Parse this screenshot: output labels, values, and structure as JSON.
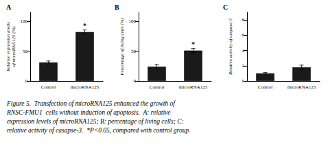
{
  "chart_data": [
    {
      "type": "bar",
      "title": "A",
      "ylabel": "Relative expression levels\nof microRNA125 (%)",
      "categories": [
        "Control",
        "microRNA125"
      ],
      "values": [
        31,
        82
      ],
      "errors": [
        2.5,
        3.5
      ],
      "ylim": [
        0,
        115
      ],
      "yticks": [
        0,
        50,
        100
      ],
      "color": "#1a1a1a",
      "grid": false,
      "annotations": [
        {
          "text": "*",
          "x": "microRNA125"
        }
      ]
    },
    {
      "type": "bar",
      "title": "B",
      "ylabel": "Percentage of living cells (%)",
      "categories": [
        "Control",
        "microRNA125"
      ],
      "values": [
        24,
        51
      ],
      "errors": [
        4.0,
        3.5
      ],
      "ylim": [
        0,
        115
      ],
      "yticks": [
        0,
        50,
        100
      ],
      "color": "#1a1a1a",
      "grid": false,
      "annotations": [
        {
          "text": "*",
          "x": "microRNA125"
        }
      ]
    },
    {
      "type": "bar",
      "title": "C",
      "ylabel": "Relative activity of caspase-3",
      "categories": [
        "Control",
        "microRNA125"
      ],
      "values": [
        1.0,
        1.8
      ],
      "errors": [
        0.12,
        0.28
      ],
      "ylim": [
        0,
        9
      ],
      "yticks": [
        0,
        2,
        4,
        6,
        8
      ],
      "color": "#1a1a1a",
      "grid": false
    }
  ],
  "caption": [
    "Figure 5.  Transfection of microRNA125 enhanced the growth of",
    "RNSC-FMU1  cells without induction of apoptosis.  A: relative",
    "expression levels of microRNA125; B: percentage of living cells; C:",
    "relative activity of casapse-3.  *P<0.05, compared with control group."
  ]
}
